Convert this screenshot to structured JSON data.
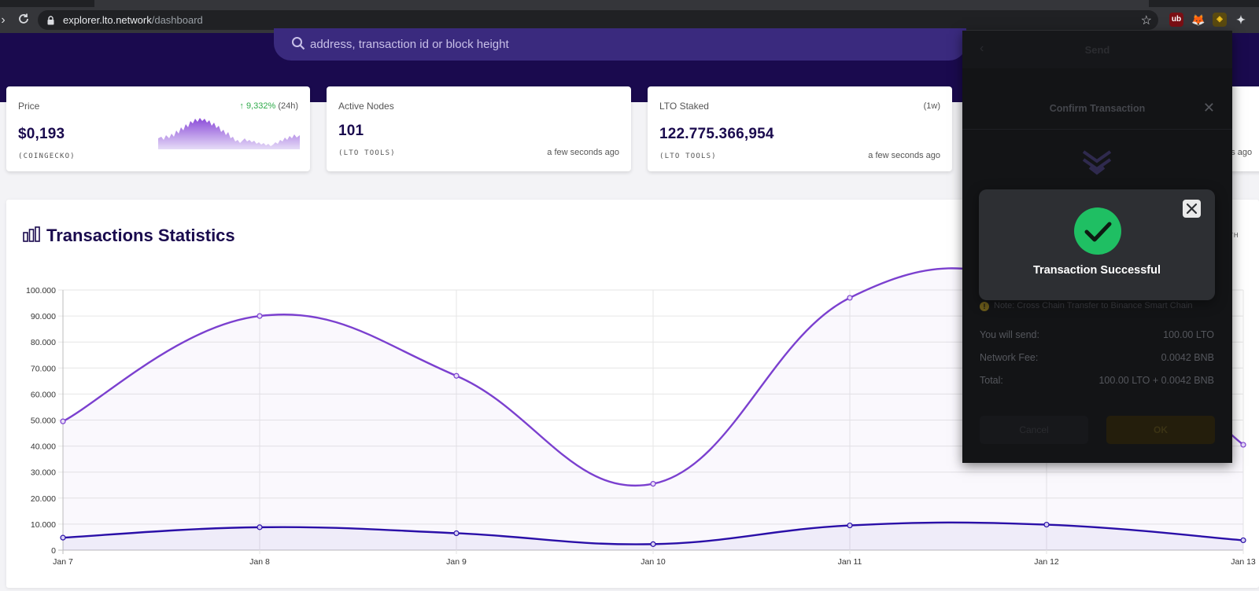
{
  "browser": {
    "url_domain": "explorer.lto.network",
    "url_path": "/dashboard"
  },
  "search": {
    "placeholder": "address, transaction id or block height"
  },
  "cards": {
    "price": {
      "label": "Price",
      "change_arrow": "↑",
      "change": "9,332%",
      "period": "(24h)",
      "value": "$0,193",
      "source": "(COINGECKO)"
    },
    "nodes": {
      "label": "Active Nodes",
      "value": "101",
      "source": "(LTO TOOLS)",
      "updated": "a few seconds ago"
    },
    "staked": {
      "label": "LTO Staked",
      "period": "(1w)",
      "value": "122.775.366,954",
      "source": "(LTO TOOLS)",
      "updated": "a few seconds ago"
    },
    "partial_updated": "nds ago"
  },
  "panel": {
    "title": "Transactions Statistics",
    "side_glyph": "TH"
  },
  "chart_data": {
    "type": "line",
    "categories": [
      "Jan 7",
      "Jan 8",
      "Jan 9",
      "Jan 10",
      "Jan 11",
      "Jan 12",
      "Jan 13"
    ],
    "ylim": [
      0,
      100000
    ],
    "yticks": [
      0,
      10000,
      20000,
      30000,
      40000,
      50000,
      60000,
      70000,
      80000,
      90000,
      100000
    ],
    "ytick_labels": [
      "0",
      "10.000",
      "20.000",
      "30.000",
      "40.000",
      "50.000",
      "60.000",
      "70.000",
      "80.000",
      "90.000",
      "100.000"
    ],
    "grid": true,
    "series": [
      {
        "values": [
          49500,
          90000,
          67000,
          25500,
          97000,
          100000,
          40500
        ],
        "color": "#7b40cf"
      },
      {
        "values": [
          4800,
          8800,
          6500,
          2300,
          9500,
          9800,
          3800
        ],
        "color": "#2a0fa8"
      }
    ]
  },
  "wallet": {
    "back": "‹",
    "header": "Send",
    "confirm_title": "Confirm Transaction",
    "close": "✕",
    "note": "Note: Cross Chain Transfer to Binance Smart Chain",
    "rows": [
      {
        "label": "You will send:",
        "value": "100.00 LTO"
      },
      {
        "label": "Network Fee:",
        "value": "0.0042 BNB"
      },
      {
        "label": "Total:",
        "value": "100.00 LTO + 0.0042 BNB"
      }
    ],
    "cancel": "Cancel",
    "ok": "OK"
  },
  "success": {
    "title": "Transaction Successful"
  },
  "colors": {
    "hero": "#1a0a4e",
    "accent_purple": "#7b40cf",
    "dark_blue": "#2a0fa8",
    "success_green": "#1fbf63",
    "positive": "#2eaa4a"
  }
}
